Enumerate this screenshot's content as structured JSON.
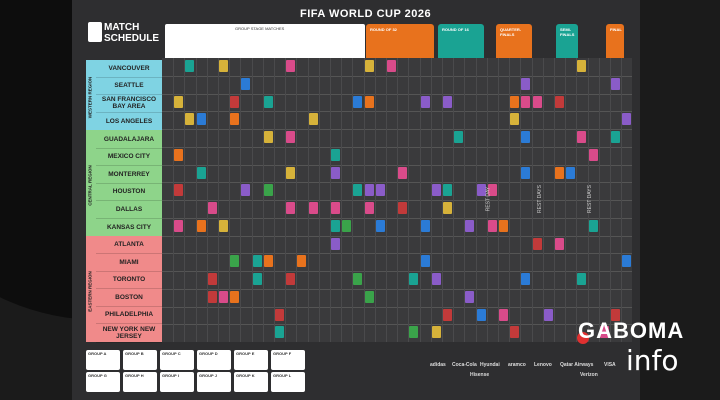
{
  "title": "FIFA WORLD CUP 2026",
  "logo": {
    "line1": "MATCH",
    "line2": "SCHEDULE"
  },
  "legend_label": "GROUP STAGE MATCHES",
  "stages": [
    {
      "label": "ROUND OF 32",
      "color": "#e8721d"
    },
    {
      "label": "ROUND OF 16",
      "color": "#1aa393"
    },
    {
      "label": "QUARTER-FINALS",
      "color": "#e8721d"
    },
    {
      "label": "SEMI-FINALS",
      "color": "#1aa393"
    },
    {
      "label": "FINAL",
      "color": "#e8721d"
    }
  ],
  "regions": [
    {
      "name": "WESTERN REGION",
      "color": "#7fd3e3",
      "cities": [
        "VANCOUVER",
        "SEATTLE",
        "SAN FRANCISCO BAY AREA",
        "LOS ANGELES"
      ]
    },
    {
      "name": "CENTRAL REGION",
      "color": "#8ed48a",
      "cities": [
        "GUADALAJARA",
        "MEXICO CITY",
        "MONTERREY",
        "HOUSTON",
        "DALLAS",
        "KANSAS CITY"
      ]
    },
    {
      "name": "EASTERN REGION",
      "color": "#f08a8a",
      "cities": [
        "ATLANTA",
        "MIAMI",
        "TORONTO",
        "BOSTON",
        "PHILADELPHIA",
        "NEW YORK NEW JERSEY"
      ]
    }
  ],
  "rest_days": [
    "REST DAY",
    "REST DAYS",
    "REST DAYS"
  ],
  "groups": [
    "GROUP A",
    "GROUP B",
    "GROUP C",
    "GROUP D",
    "GROUP E",
    "GROUP F",
    "GROUP G",
    "GROUP H",
    "GROUP I",
    "GROUP J",
    "GROUP K",
    "GROUP L"
  ],
  "sponsors": [
    "adidas",
    "Coca-Cola",
    "Hyundai",
    "aramco",
    "Lenovo",
    "Qatar Airways",
    "VISA",
    "Hisense",
    "Verizon"
  ],
  "watermark": {
    "line1": "GABOMA",
    "line2": "info"
  }
}
